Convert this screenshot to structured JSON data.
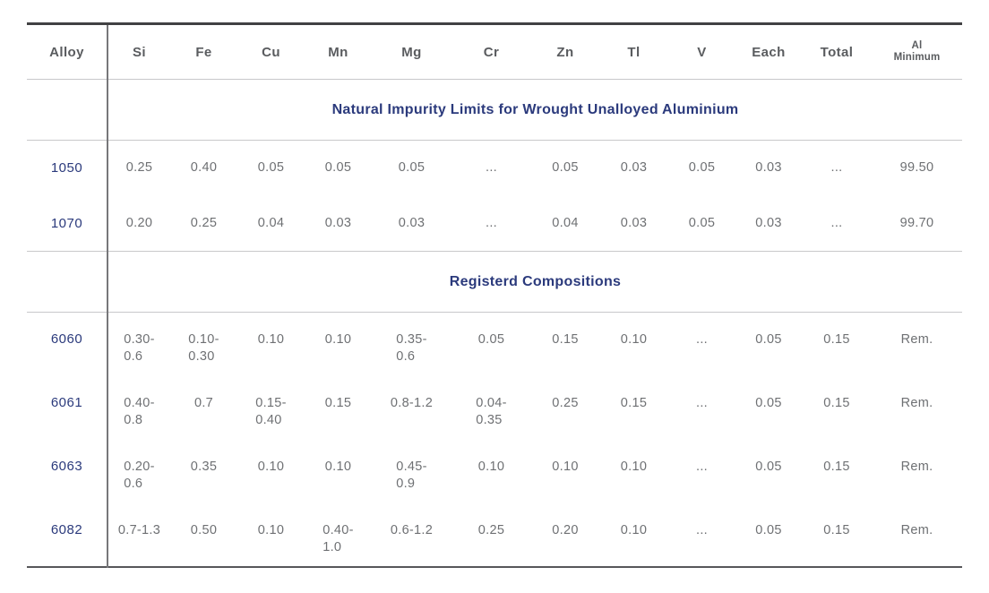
{
  "colors": {
    "accent_navy": "#2b3a7c",
    "header_text": "#5a5c5f",
    "value_text": "#6e7073",
    "rule_light": "#c8c8ca",
    "rule_dark": "#414143"
  },
  "table": {
    "header": {
      "alloy": "Alloy",
      "elements": [
        "Si",
        "Fe",
        "Cu",
        "Mn",
        "Mg",
        "Cr",
        "Zn",
        "Tl",
        "V",
        "Each",
        "Total"
      ],
      "al_minimum_line1": "Al",
      "al_minimum_line2": "Minimum"
    },
    "sections": [
      {
        "title": "Natural Impurity Limits for Wrought Unalloyed Aluminium",
        "rows": [
          {
            "alloy": "1050",
            "values": [
              "0.25",
              "0.40",
              "0.05",
              "0.05",
              "0.05",
              "...",
              "0.05",
              "0.03",
              "0.05",
              "0.03",
              "...",
              "99.50"
            ]
          },
          {
            "alloy": "1070",
            "values": [
              "0.20",
              "0.25",
              "0.04",
              "0.03",
              "0.03",
              "...",
              "0.04",
              "0.03",
              "0.05",
              "0.03",
              "...",
              "99.70"
            ]
          }
        ]
      },
      {
        "title": "Registerd Compositions",
        "rows": [
          {
            "alloy": "6060",
            "values": [
              "0.30-\n0.6",
              "0.10-\n0.30",
              "0.10",
              "0.10",
              "0.35-\n0.6",
              "0.05",
              "0.15",
              "0.10",
              "...",
              "0.05",
              "0.15",
              "Rem."
            ]
          },
          {
            "alloy": "6061",
            "values": [
              "0.40-\n0.8",
              "0.7",
              "0.15-\n0.40",
              "0.15",
              "0.8-1.2",
              "0.04-\n0.35",
              "0.25",
              "0.15",
              "...",
              "0.05",
              "0.15",
              "Rem."
            ]
          },
          {
            "alloy": "6063",
            "values": [
              "0.20-\n0.6",
              "0.35",
              "0.10",
              "0.10",
              "0.45-\n0.9",
              "0.10",
              "0.10",
              "0.10",
              "...",
              "0.05",
              "0.15",
              "Rem."
            ]
          },
          {
            "alloy": "6082",
            "values": [
              "0.7-1.3",
              "0.50",
              "0.10",
              "0.40-\n1.0",
              "0.6-1.2",
              "0.25",
              "0.20",
              "0.10",
              "...",
              "0.05",
              "0.15",
              "Rem."
            ]
          }
        ]
      }
    ]
  }
}
